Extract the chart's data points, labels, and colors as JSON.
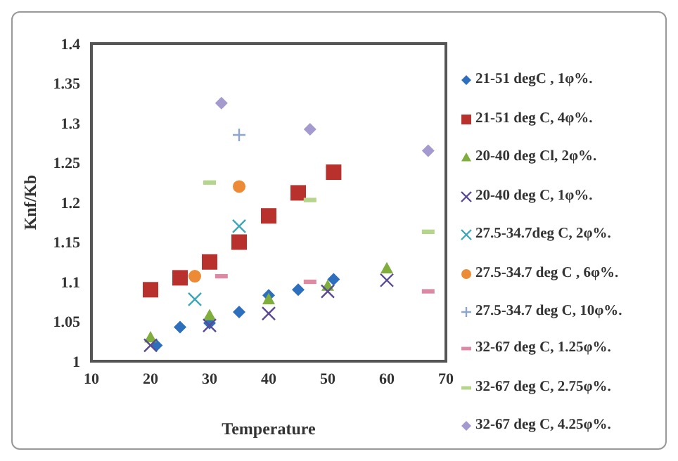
{
  "chart_data": {
    "type": "scatter",
    "xlabel": "Temperature",
    "ylabel": "Knf/Kb",
    "xlim": [
      10,
      70
    ],
    "xticks": [
      10,
      20,
      30,
      40,
      50,
      60,
      70
    ],
    "ylim": [
      1,
      1.4
    ],
    "yticks": [
      1,
      1.05,
      1.1,
      1.15,
      1.2,
      1.25,
      1.3,
      1.35,
      1.4
    ],
    "grid": false,
    "legend": "right",
    "series": [
      {
        "name": "21-51 degC , 1φ%.",
        "color": "#2e6fbd",
        "marker": "diamond",
        "x": [
          21,
          25,
          30,
          35,
          40,
          45,
          51
        ],
        "values": [
          1.02,
          1.043,
          1.048,
          1.062,
          1.083,
          1.09,
          1.103
        ]
      },
      {
        "name": "21-51 deg C, 4φ%.",
        "color": "#b8312c",
        "marker": "square",
        "x": [
          20,
          25,
          30,
          35,
          40,
          45,
          51
        ],
        "values": [
          1.09,
          1.105,
          1.125,
          1.15,
          1.183,
          1.212,
          1.238
        ]
      },
      {
        "name": "20-40 deg Cl, 2φ%.",
        "color": "#7fae3c",
        "marker": "triangle",
        "x": [
          20,
          30,
          40,
          50,
          60
        ],
        "values": [
          1.03,
          1.058,
          1.078,
          1.095,
          1.117
        ]
      },
      {
        "name": "20-40 deg C, 1φ%.",
        "color": "#5a4a94",
        "marker": "cross",
        "x": [
          20,
          30,
          40,
          50,
          60
        ],
        "values": [
          1.02,
          1.045,
          1.06,
          1.088,
          1.102
        ]
      },
      {
        "name": "27.5-34.7deg C, 2φ%.",
        "color": "#3ea8b8",
        "marker": "cross",
        "x": [
          27.5,
          35
        ],
        "values": [
          1.078,
          1.17
        ]
      },
      {
        "name": "27.5-34.7 deg C , 6φ%.",
        "color": "#ec8a35",
        "marker": "circle",
        "x": [
          27.5,
          35
        ],
        "values": [
          1.107,
          1.22
        ]
      },
      {
        "name": "27.5-34.7 deg C, 10φ%.",
        "color": "#8ea6cf",
        "marker": "plus",
        "x": [
          35
        ],
        "values": [
          1.285
        ]
      },
      {
        "name": "32-67 deg C, 1.25φ%.",
        "color": "#dc8aa4",
        "x": [
          32,
          47,
          67
        ],
        "values": [
          1.107,
          1.1,
          1.088
        ]
      },
      {
        "name": "32-67 deg C, 2.75φ%.",
        "color": "#b5d48c",
        "x": [
          30,
          47,
          67
        ],
        "values": [
          1.225,
          1.203,
          1.163
        ]
      },
      {
        "name": "32-67 deg C, 4.25φ%.",
        "color": "#a49ad0",
        "marker": "diamond",
        "x": [
          32,
          47,
          67
        ],
        "values": [
          1.325,
          1.292,
          1.265
        ]
      }
    ]
  }
}
